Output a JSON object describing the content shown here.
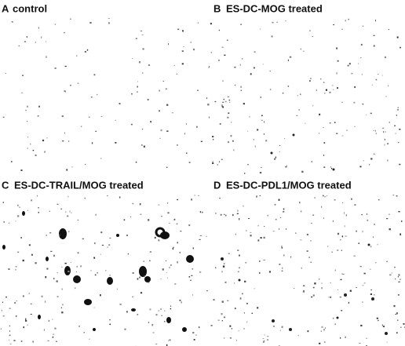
{
  "panels": [
    {
      "letter": "A",
      "label": "control"
    },
    {
      "letter": "B",
      "label": "ES-DC-MOG treated"
    },
    {
      "letter": "C",
      "label": "ES-DC-TRAIL/MOG treated"
    },
    {
      "letter": "D",
      "label": "ES-DC-PDL1/MOG treated"
    }
  ]
}
